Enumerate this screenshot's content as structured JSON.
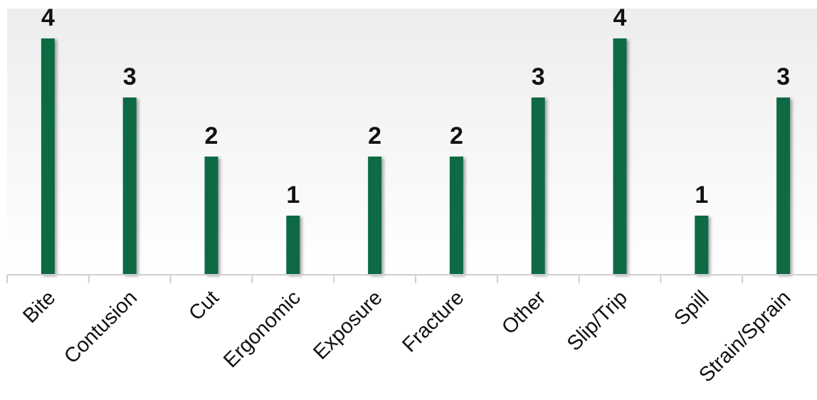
{
  "chart_data": {
    "type": "bar",
    "categories": [
      "Bite",
      "Contusion",
      "Cut",
      "Ergonomic",
      "Exposure",
      "Fracture",
      "Other",
      "Slip/Trip",
      "Spill",
      "Strain/Sprain"
    ],
    "values": [
      4,
      3,
      2,
      1,
      2,
      2,
      3,
      4,
      1,
      3
    ],
    "title": "",
    "xlabel": "",
    "ylabel": "",
    "ylim": [
      0,
      4.5
    ],
    "grid": false,
    "legend": "none",
    "data_labels": true,
    "colors": {
      "bar": "#0f6b45",
      "axis": "#cfcfcf",
      "text": "#111111",
      "background_top": "#eeeeee",
      "background_bottom": "#ffffff"
    }
  }
}
